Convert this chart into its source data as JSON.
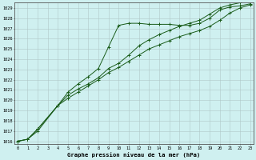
{
  "title": "Graphe pression niveau de la mer (hPa)",
  "yticks": [
    1016,
    1017,
    1018,
    1019,
    1020,
    1021,
    1022,
    1023,
    1024,
    1025,
    1026,
    1027,
    1028,
    1029
  ],
  "xticks": [
    0,
    1,
    2,
    3,
    4,
    5,
    6,
    7,
    8,
    9,
    10,
    11,
    12,
    13,
    14,
    15,
    16,
    17,
    18,
    19,
    20,
    21,
    22,
    23
  ],
  "line_color": "#1a5c1a",
  "bg_color": "#cff0f0",
  "grid_color": "#b0c8c8",
  "line1_x": [
    0,
    1,
    2,
    4,
    5,
    6,
    7,
    8,
    9,
    10,
    11,
    12,
    13,
    14,
    15,
    16,
    17,
    18,
    19,
    20,
    21,
    22,
    23
  ],
  "line1_y": [
    1016.0,
    1016.2,
    1017.0,
    1019.5,
    1020.2,
    1020.8,
    1021.4,
    1022.0,
    1022.7,
    1023.2,
    1023.8,
    1024.4,
    1025.0,
    1025.4,
    1025.8,
    1026.2,
    1026.5,
    1026.8,
    1027.2,
    1027.8,
    1028.5,
    1029.0,
    1029.3
  ],
  "line2_x": [
    0,
    1,
    2,
    4,
    5,
    6,
    7,
    8,
    9,
    10,
    11,
    12,
    13,
    14,
    15,
    16,
    17,
    18,
    19,
    20,
    21,
    22,
    23
  ],
  "line2_y": [
    1016.0,
    1016.2,
    1017.2,
    1019.5,
    1020.8,
    1021.6,
    1022.3,
    1023.1,
    1025.2,
    1027.3,
    1027.5,
    1027.5,
    1027.4,
    1027.4,
    1027.4,
    1027.3,
    1027.3,
    1027.5,
    1028.0,
    1028.8,
    1029.1,
    1029.2,
    1029.4
  ],
  "line3_x": [
    0,
    1,
    2,
    4,
    5,
    6,
    7,
    8,
    9,
    10,
    11,
    12,
    13,
    14,
    15,
    16,
    17,
    18,
    19,
    20,
    21,
    22,
    23
  ],
  "line3_y": [
    1016.0,
    1016.2,
    1017.2,
    1019.5,
    1020.5,
    1021.1,
    1021.6,
    1022.2,
    1023.1,
    1023.6,
    1024.4,
    1025.3,
    1025.9,
    1026.4,
    1026.8,
    1027.2,
    1027.5,
    1027.8,
    1028.4,
    1029.0,
    1029.3,
    1029.5,
    1029.8
  ],
  "ylim_min": 1015.7,
  "ylim_max": 1029.5,
  "xlim_min": -0.3,
  "xlim_max": 23.3,
  "marker": "+",
  "markersize": 2.8,
  "linewidth": 0.7,
  "tick_fontsize": 3.8,
  "title_fontsize": 5.2
}
